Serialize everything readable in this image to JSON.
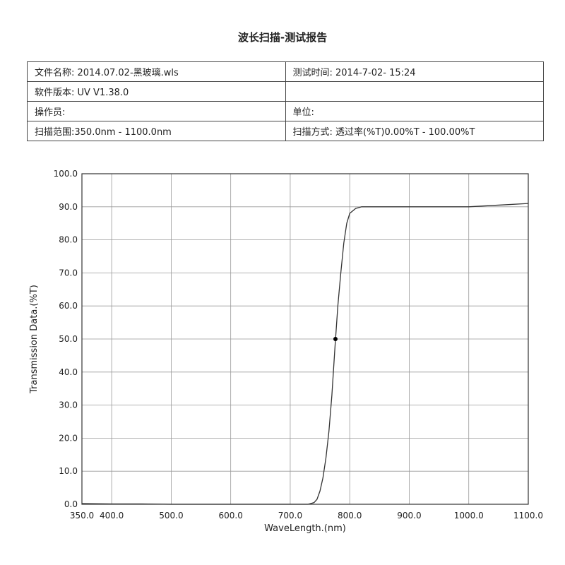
{
  "header": {
    "title": "波长扫描-测试报告"
  },
  "table": {
    "rows": [
      [
        "文件名称: 2014.07.02-黑玻璃.wls",
        "测试时间: 2014-7-02- 15:24"
      ],
      [
        "软件版本: UV V1.38.0",
        ""
      ],
      [
        "操作员:",
        "单位:"
      ],
      [
        "扫描范围:350.0nm - 1100.0nm",
        "扫描方式: 透过率(%T)0.00%T - 100.00%T"
      ]
    ]
  },
  "chart_data": {
    "type": "line",
    "x_label": "WaveLength.(nm)",
    "y_label": "Transmission Data.(%T)",
    "xlim": [
      350,
      1100
    ],
    "ylim": [
      0,
      100
    ],
    "xticks": [
      {
        "value": 350,
        "label": "350.0"
      },
      {
        "value": 400,
        "label": "400.0"
      },
      {
        "value": 500,
        "label": "500.0"
      },
      {
        "value": 600,
        "label": "600.0"
      },
      {
        "value": 700,
        "label": "700.0"
      },
      {
        "value": 800,
        "label": "800.0"
      },
      {
        "value": 900,
        "label": "900.0"
      },
      {
        "value": 1000,
        "label": "1000.0"
      },
      {
        "value": 1100,
        "label": "1100.0"
      }
    ],
    "yticks": [
      {
        "value": 0,
        "label": "0.0"
      },
      {
        "value": 10,
        "label": "10.0"
      },
      {
        "value": 20,
        "label": "20.0"
      },
      {
        "value": 30,
        "label": "30.0"
      },
      {
        "value": 40,
        "label": "40.0"
      },
      {
        "value": 50,
        "label": "50.0"
      },
      {
        "value": 60,
        "label": "60.0"
      },
      {
        "value": 70,
        "label": "70.0"
      },
      {
        "value": 80,
        "label": "80.0"
      },
      {
        "value": 90,
        "label": "90.0"
      },
      {
        "value": 100,
        "label": "100.0"
      }
    ],
    "grid": true,
    "x": [
      350,
      400,
      450,
      500,
      550,
      600,
      650,
      700,
      730,
      740,
      745,
      750,
      755,
      760,
      765,
      770,
      775,
      780,
      785,
      790,
      795,
      800,
      810,
      820,
      850,
      900,
      950,
      1000,
      1050,
      1100
    ],
    "series": [
      {
        "color": "#333333",
        "values": [
          0.2,
          0.1,
          0.1,
          0,
          0,
          0,
          0,
          0,
          0,
          0.5,
          1.5,
          4,
          8,
          14,
          22,
          33,
          47,
          60,
          70,
          79,
          85,
          88,
          89.5,
          90,
          90,
          90,
          90,
          90,
          90.5,
          91
        ]
      }
    ],
    "marker": {
      "x": 776,
      "y": 50
    }
  }
}
